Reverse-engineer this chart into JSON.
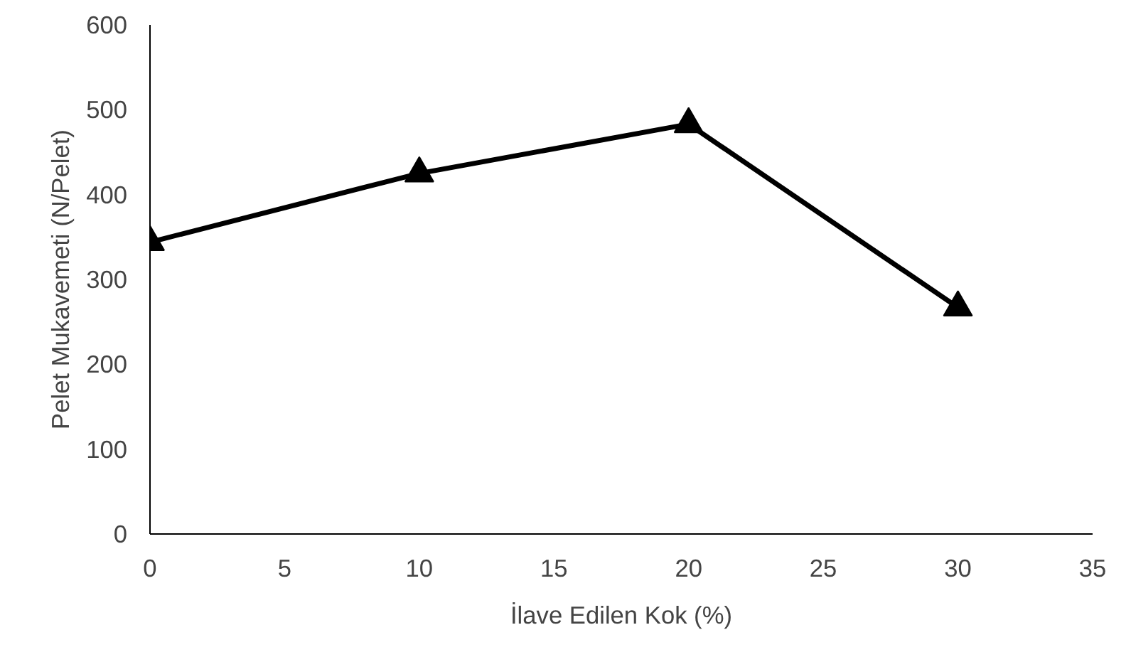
{
  "chart_data": {
    "type": "line",
    "xlabel": "İlave Edilen Kok (%)",
    "ylabel": "Pelet Mukavemeti (N/Pelet)",
    "x": [
      0,
      10,
      20,
      30
    ],
    "series": [
      {
        "color": "#000000",
        "values": [
          344,
          425,
          483,
          267
        ]
      }
    ],
    "xlim": [
      0,
      35
    ],
    "xticks": [
      0,
      5,
      10,
      15,
      20,
      25,
      30,
      35
    ],
    "ylim": [
      0,
      600
    ],
    "yticks": [
      0,
      100,
      200,
      300,
      400,
      500,
      600
    ],
    "marker": "triangle",
    "line_style": "solid"
  }
}
